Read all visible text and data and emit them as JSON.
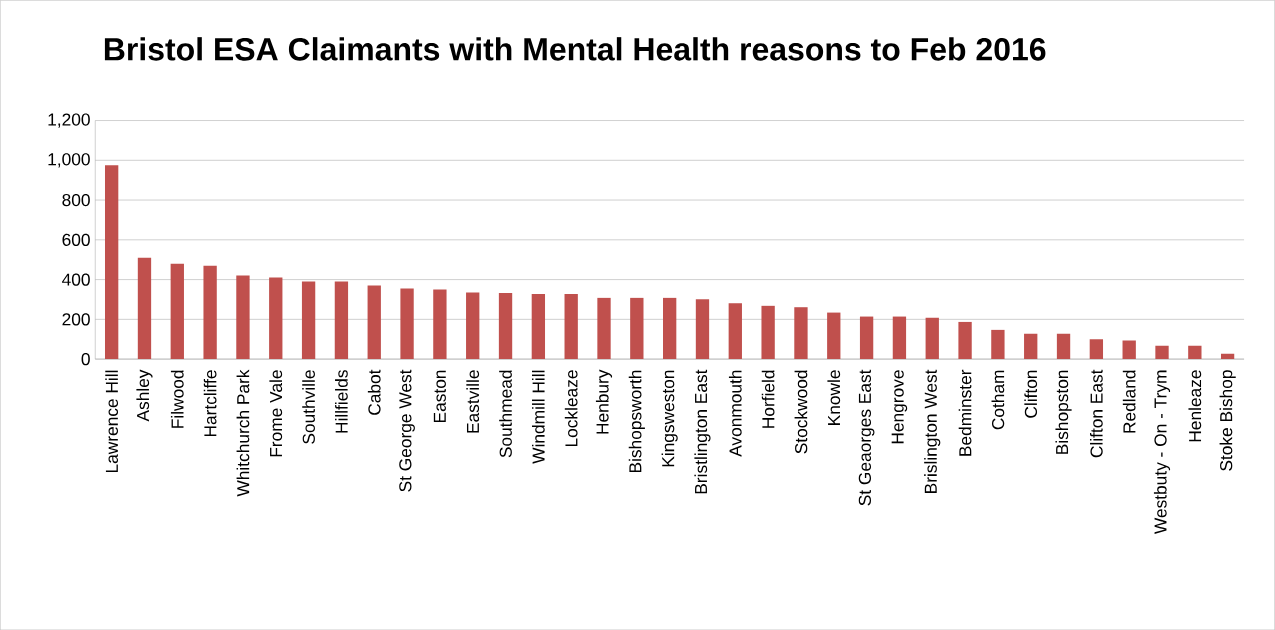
{
  "chart_data": {
    "type": "bar",
    "title": "Bristol ESA Claimants with Mental Health reasons to Feb 2016",
    "categories": [
      "Lawrence Hill",
      "Ashley",
      "Filwood",
      "Hartcliffe",
      "Whitchurch Park",
      "Frome Vale",
      "Southville",
      "Hillfields",
      "Cabot",
      "St George West",
      "Easton",
      "Eastville",
      "Southmead",
      "Windmill Hill",
      "Lockleaze",
      "Henbury",
      "Bishopsworth",
      "Kingsweston",
      "Bristlington East",
      "Avonmouth",
      "Horfield",
      "Stockwood",
      "Knowle",
      "St Geaorges East",
      "Hengrove",
      "Brislington West",
      "Bedminster",
      "Cotham",
      "Clifton",
      "Bishopston",
      "Clifton East",
      "Redland",
      "Westbuty - On - Trym",
      "Henleaze",
      "Stoke Bishop"
    ],
    "values": [
      975,
      510,
      480,
      470,
      420,
      410,
      390,
      390,
      370,
      355,
      350,
      335,
      333,
      328,
      328,
      308,
      308,
      308,
      301,
      281,
      268,
      261,
      234,
      214,
      214,
      208,
      187,
      147,
      127,
      127,
      100,
      94,
      67,
      67,
      27
    ],
    "color": "#c0504d",
    "ylim": [
      0,
      1200
    ],
    "yticks": [
      {
        "value": 0,
        "label": "0"
      },
      {
        "value": 200,
        "label": "200"
      },
      {
        "value": 400,
        "label": "400"
      },
      {
        "value": 600,
        "label": "600"
      },
      {
        "value": 800,
        "label": "800"
      },
      {
        "value": 1000,
        "label": "1,000"
      },
      {
        "value": 1200,
        "label": "1,200"
      }
    ],
    "grid": "y"
  }
}
